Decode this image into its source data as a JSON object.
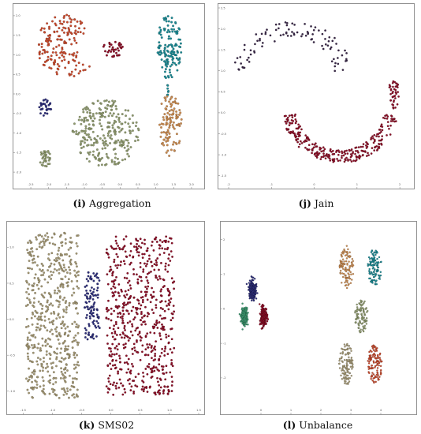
{
  "colors": {
    "red": "#c8492c",
    "teal": "#1c8a94",
    "maroon": "#8c1028",
    "navy": "#2e2f7a",
    "sage": "#8f9a6e",
    "orange": "#c98a4f",
    "dark_purple": "#3a2848",
    "olive": "#a29672",
    "green": "#3f9a72"
  },
  "chart_data": [
    {
      "type": "scatter",
      "caption_letter": "(i)",
      "caption_text": "Aggregation",
      "xlim": [
        -2.7,
        2.2
      ],
      "ylim": [
        -2.2,
        2.2
      ],
      "xticks": [
        "-2.5",
        "-2.0",
        "-1.5",
        "-1.0",
        "-0.5",
        "0.0",
        "0.5",
        "1.0",
        "1.5",
        "2.0"
      ],
      "yticks": [
        "-2.0",
        "-1.5",
        "-1.0",
        "-0.5",
        "0.0",
        "0.5",
        "1.0",
        "1.5",
        "2.0"
      ],
      "grid": false,
      "clusters": [
        {
          "shape": "moon",
          "cx": -1.5,
          "cy": 1.22,
          "rx": 0.85,
          "ry": 0.8,
          "n": 170,
          "color": "red"
        },
        {
          "shape": "ellipse",
          "cx": -0.2,
          "cy": 1.15,
          "rx": 0.28,
          "ry": 0.22,
          "n": 34,
          "color": "maroon"
        },
        {
          "shape": "ellipse",
          "cx": 1.38,
          "cy": 1.2,
          "rx": 0.34,
          "ry": 0.85,
          "n": 135,
          "color": "teal"
        },
        {
          "shape": "ellipse",
          "cx": 1.33,
          "cy": 0.08,
          "rx": 0.025,
          "ry": 0.16,
          "n": 8,
          "color": "teal"
        },
        {
          "shape": "ellipse",
          "cx": -2.1,
          "cy": -0.35,
          "rx": 0.17,
          "ry": 0.22,
          "n": 30,
          "color": "navy"
        },
        {
          "shape": "ellipse",
          "cx": -0.4,
          "cy": -1.0,
          "rx": 0.93,
          "ry": 0.85,
          "n": 270,
          "color": "sage"
        },
        {
          "shape": "ellipse",
          "cx": 1.4,
          "cy": -0.8,
          "rx": 0.33,
          "ry": 0.8,
          "n": 110,
          "color": "orange"
        },
        {
          "shape": "ellipse",
          "cx": -2.1,
          "cy": -1.65,
          "rx": 0.17,
          "ry": 0.22,
          "n": 34,
          "color": "sage"
        }
      ]
    },
    {
      "type": "scatter",
      "caption_letter": "(j)",
      "caption_text": "Jain",
      "xlim": [
        -2.0,
        2.2
      ],
      "ylim": [
        -1.6,
        2.5
      ],
      "xticks": [
        "-2",
        "-1",
        "0",
        "1",
        "2"
      ],
      "yticks": [
        "-1.5",
        "-1.0",
        "-0.5",
        "0.0",
        "0.5",
        "1.0",
        "1.5",
        "2.0",
        "2.5"
      ],
      "grid": false,
      "clusters": [
        {
          "shape": "arc",
          "cx": -0.5,
          "cy": 0.8,
          "r": 1.2,
          "a0": 10,
          "a1": 170,
          "thick": 0.42,
          "n": 95,
          "color": "dark_purple"
        },
        {
          "shape": "arc",
          "cx": 0.6,
          "cy": 0.15,
          "r": 1.2,
          "a0": 190,
          "a1": 350,
          "thick": 0.32,
          "n": 270,
          "color": "maroon"
        },
        {
          "shape": "ellipse",
          "cx": 1.85,
          "cy": 0.45,
          "rx": 0.14,
          "ry": 0.35,
          "n": 40,
          "color": "maroon"
        }
      ]
    },
    {
      "type": "scatter",
      "caption_letter": "(k)",
      "caption_text": "SMS02",
      "xlim": [
        -1.6,
        1.5
      ],
      "ylim": [
        -1.2,
        1.3
      ],
      "xticks": [
        "-1.5",
        "-1.0",
        "-0.5",
        "0.0",
        "0.5",
        "1.0",
        "1.5"
      ],
      "yticks": [
        "-1.0",
        "-0.5",
        "0.0",
        "0.5",
        "1.0"
      ],
      "grid": false,
      "clusters": [
        {
          "shape": "rect",
          "cx": -1.0,
          "cy": 0.05,
          "rx": 0.45,
          "ry": 1.15,
          "n": 560,
          "color": "olive"
        },
        {
          "shape": "rect",
          "cx": -0.32,
          "cy": 0.2,
          "rx": 0.13,
          "ry": 0.48,
          "n": 110,
          "color": "navy"
        },
        {
          "shape": "rect",
          "cx": 0.5,
          "cy": 0.05,
          "rx": 0.58,
          "ry": 1.1,
          "n": 620,
          "color": "maroon"
        }
      ]
    },
    {
      "type": "scatter",
      "caption_letter": "(l)",
      "caption_text": "Unbalance",
      "xlim": [
        -1.0,
        5.0
      ],
      "ylim": [
        -2.8,
        2.4
      ],
      "xticks": [
        "0",
        "1",
        "2",
        "3",
        "4"
      ],
      "yticks": [
        "-2",
        "-1",
        "0",
        "1",
        "2"
      ],
      "grid": false,
      "clusters": [
        {
          "shape": "dense",
          "cx": -0.28,
          "cy": 0.55,
          "rx": 0.1,
          "ry": 0.26,
          "n": 260,
          "color": "navy"
        },
        {
          "shape": "dense",
          "cx": -0.55,
          "cy": -0.22,
          "rx": 0.1,
          "ry": 0.24,
          "n": 260,
          "color": "green"
        },
        {
          "shape": "dense",
          "cx": 0.1,
          "cy": -0.23,
          "rx": 0.1,
          "ry": 0.24,
          "n": 260,
          "color": "maroon"
        },
        {
          "shape": "ellipse",
          "cx": 2.85,
          "cy": 1.2,
          "rx": 0.24,
          "ry": 0.62,
          "n": 110,
          "color": "orange"
        },
        {
          "shape": "ellipse",
          "cx": 3.8,
          "cy": 1.2,
          "rx": 0.24,
          "ry": 0.52,
          "n": 110,
          "color": "teal"
        },
        {
          "shape": "ellipse",
          "cx": 3.35,
          "cy": -0.2,
          "rx": 0.22,
          "ry": 0.5,
          "n": 100,
          "color": "sage"
        },
        {
          "shape": "ellipse",
          "cx": 2.85,
          "cy": -1.6,
          "rx": 0.24,
          "ry": 0.6,
          "n": 110,
          "color": "olive"
        },
        {
          "shape": "ellipse",
          "cx": 3.8,
          "cy": -1.6,
          "rx": 0.24,
          "ry": 0.55,
          "n": 110,
          "color": "red"
        }
      ]
    }
  ]
}
